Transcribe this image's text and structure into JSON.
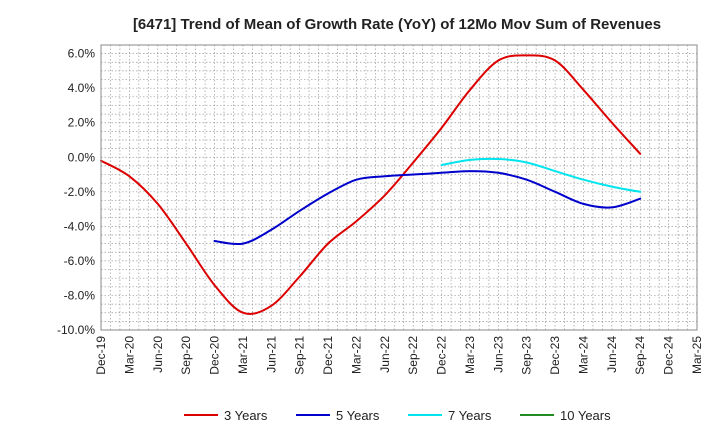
{
  "chart_data": {
    "type": "line",
    "title": "[6471]  Trend of Mean of Growth Rate (YoY) of 12Mo Mov Sum of Revenues",
    "xlabel": "",
    "ylabel": "",
    "ylim": [
      -10,
      6.5
    ],
    "yticks": [
      6,
      4,
      2,
      0,
      -2,
      -4,
      -6,
      -8,
      -10
    ],
    "ytick_labels": [
      "6.0%",
      "4.0%",
      "2.0%",
      "0.0%",
      "-2.0%",
      "-4.0%",
      "-6.0%",
      "-8.0%",
      "-10.0%"
    ],
    "x_categories": [
      "Dec-19",
      "Mar-20",
      "Jun-20",
      "Sep-20",
      "Dec-20",
      "Mar-21",
      "Jun-21",
      "Sep-21",
      "Dec-21",
      "Mar-22",
      "Jun-22",
      "Sep-22",
      "Dec-22",
      "Mar-23",
      "Jun-23",
      "Sep-23",
      "Dec-23",
      "Mar-24",
      "Jun-24",
      "Sep-24",
      "Dec-24",
      "Mar-25"
    ],
    "grid": true,
    "legend_position": "bottom",
    "series": [
      {
        "name": "3 Years",
        "color": "#dd0000",
        "points": [
          [
            0,
            -0.2
          ],
          [
            1,
            -1.1
          ],
          [
            2,
            -2.7
          ],
          [
            3,
            -5.0
          ],
          [
            4,
            -7.4
          ],
          [
            5,
            -9.0
          ],
          [
            6,
            -8.6
          ],
          [
            7,
            -6.9
          ],
          [
            8,
            -5.0
          ],
          [
            9,
            -3.7
          ],
          [
            10,
            -2.2
          ],
          [
            11,
            -0.3
          ],
          [
            12,
            1.7
          ],
          [
            13,
            3.9
          ],
          [
            14,
            5.6
          ],
          [
            15,
            5.9
          ],
          [
            16,
            5.6
          ],
          [
            17,
            3.9
          ],
          [
            18,
            2.0
          ],
          [
            19,
            0.2
          ]
        ]
      },
      {
        "name": "5 Years",
        "color": "#0000cc",
        "points": [
          [
            4,
            -4.85
          ],
          [
            5,
            -5.0
          ],
          [
            6,
            -4.2
          ],
          [
            7,
            -3.1
          ],
          [
            8,
            -2.1
          ],
          [
            9,
            -1.3
          ],
          [
            10,
            -1.1
          ],
          [
            11,
            -1.0
          ],
          [
            12,
            -0.9
          ],
          [
            13,
            -0.8
          ],
          [
            14,
            -0.9
          ],
          [
            15,
            -1.3
          ],
          [
            16,
            -2.0
          ],
          [
            17,
            -2.7
          ],
          [
            18,
            -2.9
          ],
          [
            19,
            -2.4
          ]
        ]
      },
      {
        "name": "7 Years",
        "color": "#00e5ee",
        "points": [
          [
            12,
            -0.45
          ],
          [
            13,
            -0.15
          ],
          [
            14,
            -0.1
          ],
          [
            15,
            -0.3
          ],
          [
            16,
            -0.8
          ],
          [
            17,
            -1.3
          ],
          [
            18,
            -1.7
          ],
          [
            19,
            -2.0
          ]
        ]
      },
      {
        "name": "10 Years",
        "color": "#228b22",
        "points": []
      }
    ]
  }
}
